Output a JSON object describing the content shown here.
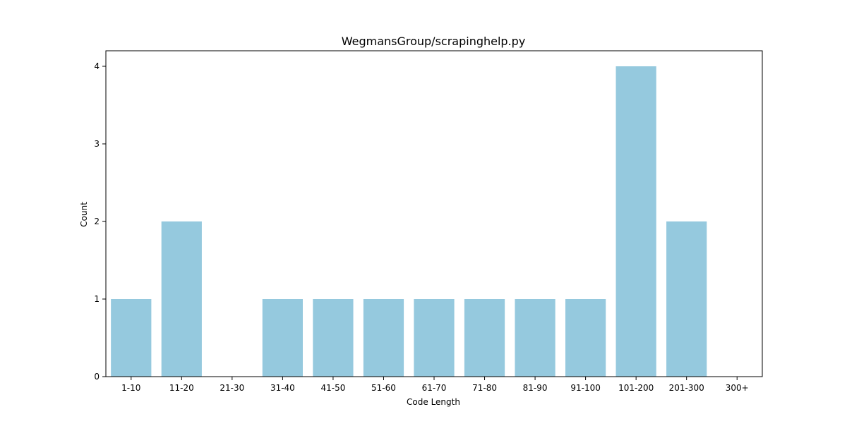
{
  "chart_data": {
    "type": "bar",
    "title": "WegmansGroup/scrapinghelp.py",
    "xlabel": "Code Length",
    "ylabel": "Count",
    "categories": [
      "1-10",
      "11-20",
      "21-30",
      "31-40",
      "41-50",
      "51-60",
      "61-70",
      "71-80",
      "81-90",
      "91-100",
      "101-200",
      "201-300",
      "300+"
    ],
    "values": [
      1,
      2,
      0,
      1,
      1,
      1,
      1,
      1,
      1,
      1,
      4,
      2,
      0
    ],
    "ylim": [
      0,
      4.2
    ],
    "yticks": [
      "0",
      "1",
      "2",
      "3",
      "4"
    ],
    "bar_color": "#95c9de",
    "grid": false,
    "legend": "none"
  }
}
